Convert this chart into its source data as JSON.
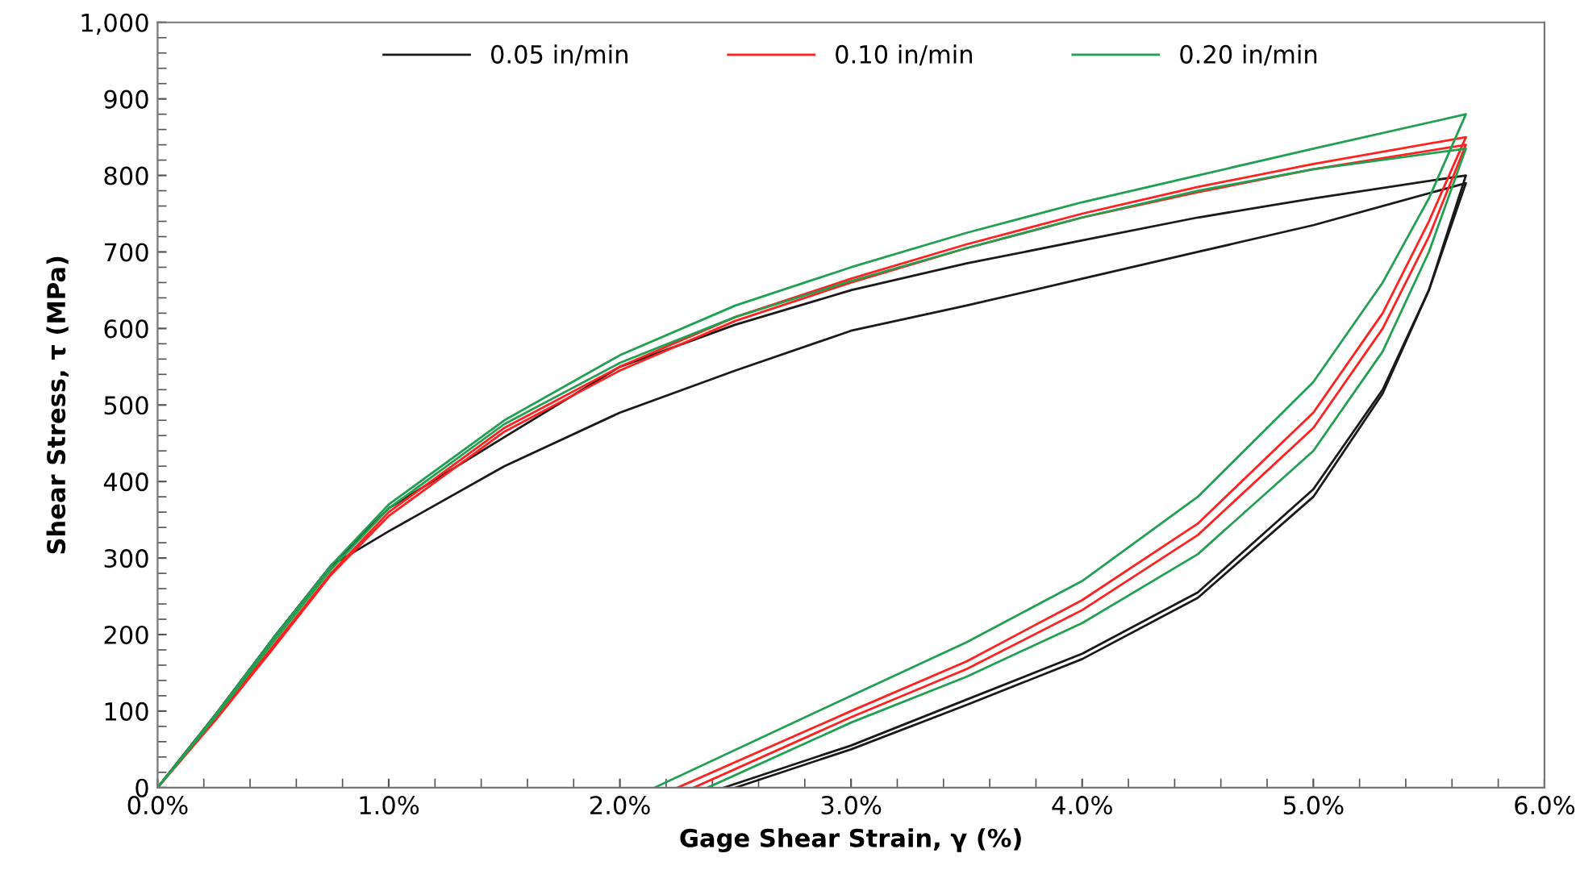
{
  "chart_data": {
    "type": "line",
    "xlabel": "Gage Shear Strain, γ (%)",
    "ylabel": "Shear Stress, τ (MPa)",
    "xlim": [
      0,
      6
    ],
    "ylim": [
      0,
      1000
    ],
    "xticks": [
      {
        "value": 0,
        "label": "0.0%"
      },
      {
        "value": 1,
        "label": "1.0%"
      },
      {
        "value": 2,
        "label": "2.0%"
      },
      {
        "value": 3,
        "label": "3.0%"
      },
      {
        "value": 4,
        "label": "4.0%"
      },
      {
        "value": 5,
        "label": "5.0%"
      },
      {
        "value": 6,
        "label": "6.0%"
      }
    ],
    "yticks": [
      0,
      100,
      200,
      300,
      400,
      500,
      600,
      700,
      800,
      900,
      {
        "value": 1000,
        "label": "1,000"
      }
    ],
    "grid": false,
    "legend": "top",
    "marker": "none",
    "line_style": "solid",
    "series": [
      {
        "name": "0.05 in/min",
        "color": "#1a1a1a",
        "x": [
          0,
          0.25,
          0.5,
          0.75,
          1.0,
          1.5,
          2.0,
          2.5,
          3.0,
          3.5,
          4.0,
          4.5,
          5.0,
          5.66,
          5.66,
          5.5,
          5.3,
          5.0,
          4.5,
          4.0,
          3.5,
          3.0,
          2.45
        ],
        "values": [
          0,
          95,
          195,
          290,
          335,
          420,
          490,
          545,
          597,
          630,
          665,
          700,
          735,
          790,
          790,
          650,
          520,
          390,
          255,
          175,
          115,
          55,
          0
        ]
      },
      {
        "color": "#1a1a1a",
        "x": [
          0,
          0.25,
          0.5,
          0.75,
          1.0,
          1.5,
          2.0,
          2.5,
          3.0,
          3.5,
          4.0,
          4.5,
          5.0,
          5.66,
          5.66,
          5.5,
          5.3,
          5.0,
          4.5,
          4.0,
          3.5,
          3.0,
          2.5
        ],
        "values": [
          0,
          95,
          195,
          290,
          365,
          458,
          550,
          605,
          650,
          685,
          715,
          745,
          770,
          800,
          800,
          650,
          515,
          380,
          248,
          168,
          108,
          50,
          0
        ]
      },
      {
        "name": "0.10 in/min",
        "color": "#ff2020",
        "x": [
          0,
          0.25,
          0.5,
          0.75,
          1.0,
          1.5,
          2.0,
          2.5,
          3.0,
          3.5,
          4.0,
          4.5,
          5.0,
          5.66,
          5.66,
          5.5,
          5.3,
          5.0,
          4.5,
          4.0,
          3.5,
          3.0,
          2.25
        ],
        "values": [
          0,
          90,
          185,
          280,
          360,
          470,
          550,
          615,
          665,
          710,
          750,
          785,
          815,
          850,
          850,
          740,
          620,
          490,
          345,
          245,
          165,
          100,
          0
        ]
      },
      {
        "color": "#ff2020",
        "x": [
          0,
          0.25,
          0.5,
          0.75,
          1.0,
          1.5,
          2.0,
          2.5,
          3.0,
          3.5,
          4.0,
          4.5,
          5.0,
          5.66,
          5.66,
          5.5,
          5.3,
          5.0,
          4.5,
          4.0,
          3.5,
          3.0,
          2.32
        ],
        "values": [
          0,
          88,
          182,
          278,
          355,
          465,
          545,
          610,
          660,
          705,
          745,
          778,
          808,
          840,
          840,
          720,
          600,
          470,
          330,
          232,
          155,
          92,
          0
        ]
      },
      {
        "name": "0.20 in/min",
        "color": "#20a050",
        "x": [
          0,
          0.25,
          0.5,
          0.75,
          1.0,
          1.5,
          2.0,
          2.5,
          3.0,
          3.5,
          4.0,
          4.5,
          5.0,
          5.66,
          5.66,
          5.5,
          5.3,
          5.0,
          4.5,
          4.0,
          3.5,
          3.0,
          2.15
        ],
        "values": [
          0,
          95,
          195,
          290,
          370,
          480,
          565,
          630,
          680,
          725,
          765,
          800,
          835,
          880,
          880,
          770,
          660,
          530,
          380,
          270,
          190,
          120,
          0
        ]
      },
      {
        "color": "#20a050",
        "x": [
          0,
          0.25,
          0.5,
          0.75,
          1.0,
          1.5,
          2.0,
          2.5,
          3.0,
          3.5,
          4.0,
          4.5,
          5.0,
          5.66,
          5.66,
          5.5,
          5.3,
          5.0,
          4.5,
          4.0,
          3.5,
          3.0,
          2.38
        ],
        "values": [
          0,
          92,
          190,
          285,
          365,
          475,
          555,
          615,
          662,
          705,
          745,
          780,
          808,
          835,
          835,
          700,
          570,
          440,
          305,
          215,
          145,
          85,
          0
        ]
      }
    ]
  }
}
